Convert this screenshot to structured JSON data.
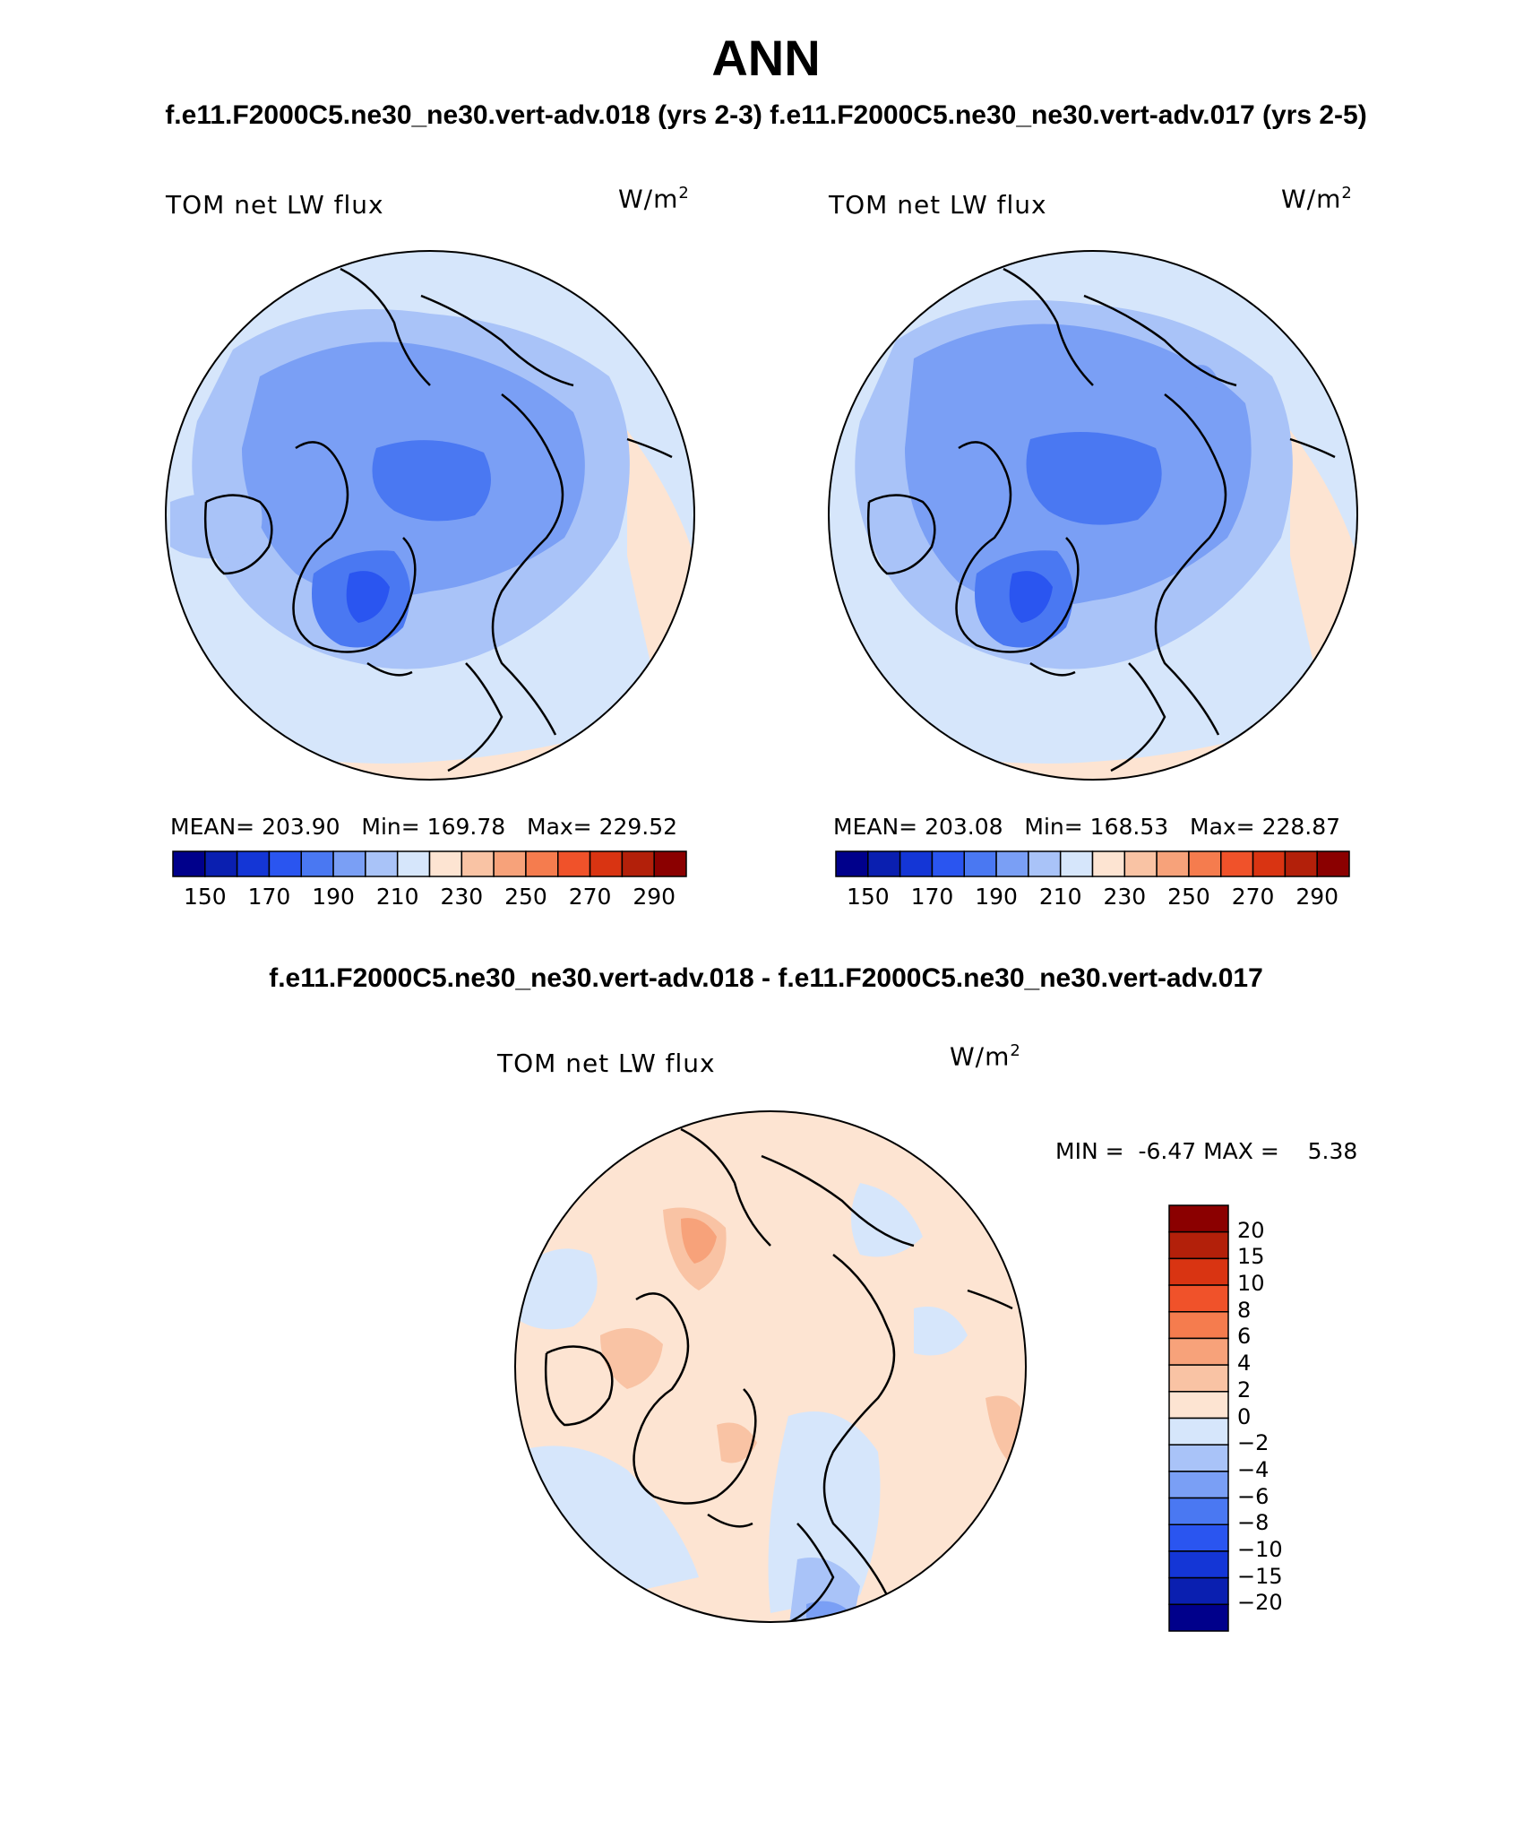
{
  "figure": {
    "title": "ANN",
    "subtitle": "f.e11.F2000C5.ne30_ne30.vert-adv.018 (yrs 2-3)  f.e11.F2000C5.ne30_ne30.vert-adv.017 (yrs 2-5)",
    "diff_title": "f.e11.F2000C5.ne30_ne30.vert-adv.018 - f.e11.F2000C5.ne30_ne30.vert-adv.017"
  },
  "panels": [
    {
      "variable": "TOM net LW flux",
      "units": "W/m",
      "units_exp": "2",
      "stats": {
        "mean_label": "MEAN=",
        "mean": "203.90",
        "min_label": "Min=",
        "min": "169.78",
        "max_label": "Max=",
        "max": "229.52"
      }
    },
    {
      "variable": "TOM net LW flux",
      "units": "W/m",
      "units_exp": "2",
      "stats": {
        "mean_label": "MEAN=",
        "mean": "203.08",
        "min_label": "Min=",
        "min": "168.53",
        "max_label": "Max=",
        "max": "228.87"
      }
    }
  ],
  "colorbar_abs": {
    "ticks": [
      "150",
      "170",
      "190",
      "210",
      "230",
      "250",
      "270",
      "290"
    ],
    "colors": [
      "#00008b",
      "#0a1fb0",
      "#1436d6",
      "#2a55f0",
      "#4a78f2",
      "#7a9ff5",
      "#a9c3f8",
      "#d6e6fb",
      "#fde4d2",
      "#f9c3a4",
      "#f7a27a",
      "#f57c4e",
      "#f0522a",
      "#d93412",
      "#b3200a",
      "#8b0000"
    ]
  },
  "diff_panel": {
    "variable": "TOM net LW flux",
    "units": "W/m",
    "units_exp": "2",
    "min_label": "MIN =",
    "min": "-6.47",
    "max_label": "MAX =",
    "max": "5.38"
  },
  "colorbar_diff": {
    "ticks": [
      "20",
      "15",
      "10",
      "8",
      "6",
      "4",
      "2",
      "0",
      "−2",
      "−4",
      "−6",
      "−8",
      "−10",
      "−15",
      "−20"
    ],
    "colors": [
      "#8b0000",
      "#b3200a",
      "#d93412",
      "#f0522a",
      "#f57c4e",
      "#f7a27a",
      "#f9c3a4",
      "#fde4d2",
      "#d6e6fb",
      "#a9c3f8",
      "#7a9ff5",
      "#4a78f2",
      "#2a55f0",
      "#1436d6",
      "#0a1fb0",
      "#00008b"
    ]
  },
  "map_colors": {
    "light_blue": "#d6e6fb",
    "mid_blue": "#a9c3f8",
    "blue": "#7a9ff5",
    "deep_blue": "#4a78f2",
    "strong_blue": "#2a55f0",
    "peach": "#fde4d2",
    "salmon": "#f9c3a4",
    "orange": "#f7a27a"
  }
}
